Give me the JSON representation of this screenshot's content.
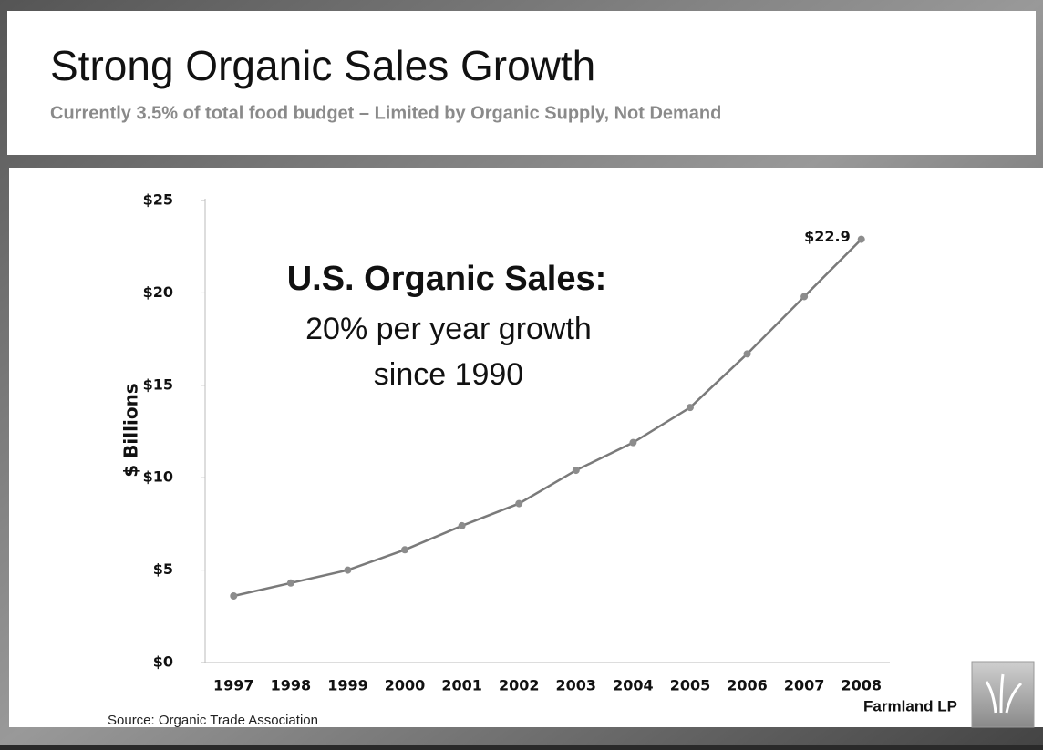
{
  "slide": {
    "title": "Strong Organic Sales Growth",
    "subtitle": "Currently 3.5% of total food budget – Limited by Organic Supply, Not Demand",
    "source": "Source: Organic Trade Association",
    "brand": "Farmland LP"
  },
  "chart_data": {
    "type": "line",
    "annotation": [
      "U.S. Organic Sales:",
      "20% per year growth",
      "since 1990"
    ],
    "y_label": "$ Billions",
    "categories": [
      "1997",
      "1998",
      "1999",
      "2000",
      "2001",
      "2002",
      "2003",
      "2004",
      "2005",
      "2006",
      "2007",
      "2008"
    ],
    "values": [
      3.6,
      4.3,
      5.0,
      6.1,
      7.4,
      8.6,
      10.4,
      11.9,
      13.8,
      16.7,
      19.8,
      22.9
    ],
    "value_labels": [
      null,
      null,
      null,
      null,
      null,
      null,
      null,
      null,
      null,
      null,
      null,
      "$22.9"
    ],
    "color": "#7a7a7a",
    "marker_color": "#8c8c8c",
    "ylim": [
      0,
      25
    ],
    "yticks": [
      {
        "value": 0,
        "label": "$0"
      },
      {
        "value": 5,
        "label": "$5"
      },
      {
        "value": 10,
        "label": "$10"
      },
      {
        "value": 15,
        "label": "$15"
      },
      {
        "value": 20,
        "label": "$20"
      },
      {
        "value": 25,
        "label": "$25"
      }
    ],
    "grid": false
  }
}
